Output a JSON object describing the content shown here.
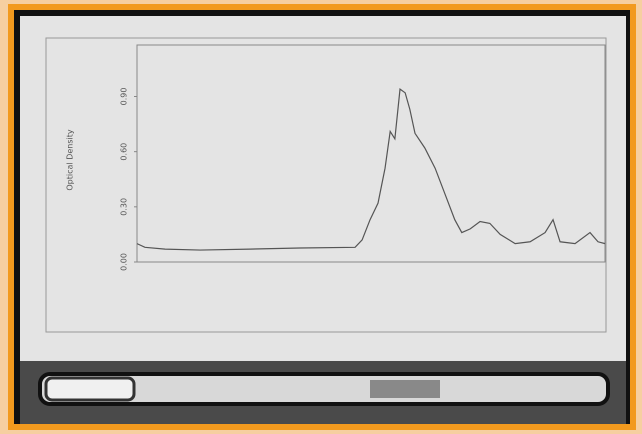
{
  "chart_data": {
    "type": "line",
    "y_label": "Optical Density",
    "x": [
      0,
      1.7,
      6,
      13.5,
      24.1,
      34.8,
      46.6,
      48.1,
      49.8,
      51.5,
      53,
      54.1,
      55.1,
      56.2,
      57.3,
      58.3,
      59.4,
      61.5,
      63.7,
      65.8,
      67.9,
      69.4,
      71.2,
      73.3,
      75.4,
      77.6,
      80.8,
      84,
      87.2,
      88.9,
      90.4,
      93.6,
      96.8,
      98.5,
      100
    ],
    "series": [
      {
        "name": "Optical Density",
        "color": "#555555",
        "values": [
          0.1,
          0.08,
          0.07,
          0.065,
          0.07,
          0.076,
          0.08,
          0.12,
          0.23,
          0.32,
          0.51,
          0.71,
          0.67,
          0.94,
          0.92,
          0.83,
          0.7,
          0.62,
          0.51,
          0.37,
          0.23,
          0.16,
          0.18,
          0.22,
          0.21,
          0.15,
          0.1,
          0.11,
          0.16,
          0.23,
          0.11,
          0.1,
          0.16,
          0.11,
          0.1
        ]
      }
    ],
    "xlim": [
      0,
      100
    ],
    "ylim": [
      0,
      1.18
    ],
    "yticks": [
      {
        "value": 0,
        "label": "0.00"
      },
      {
        "value": 0.3,
        "label": "0.30"
      },
      {
        "value": 0.6,
        "label": "0.60"
      },
      {
        "value": 0.9,
        "label": "0.90"
      }
    ],
    "grid": false
  }
}
